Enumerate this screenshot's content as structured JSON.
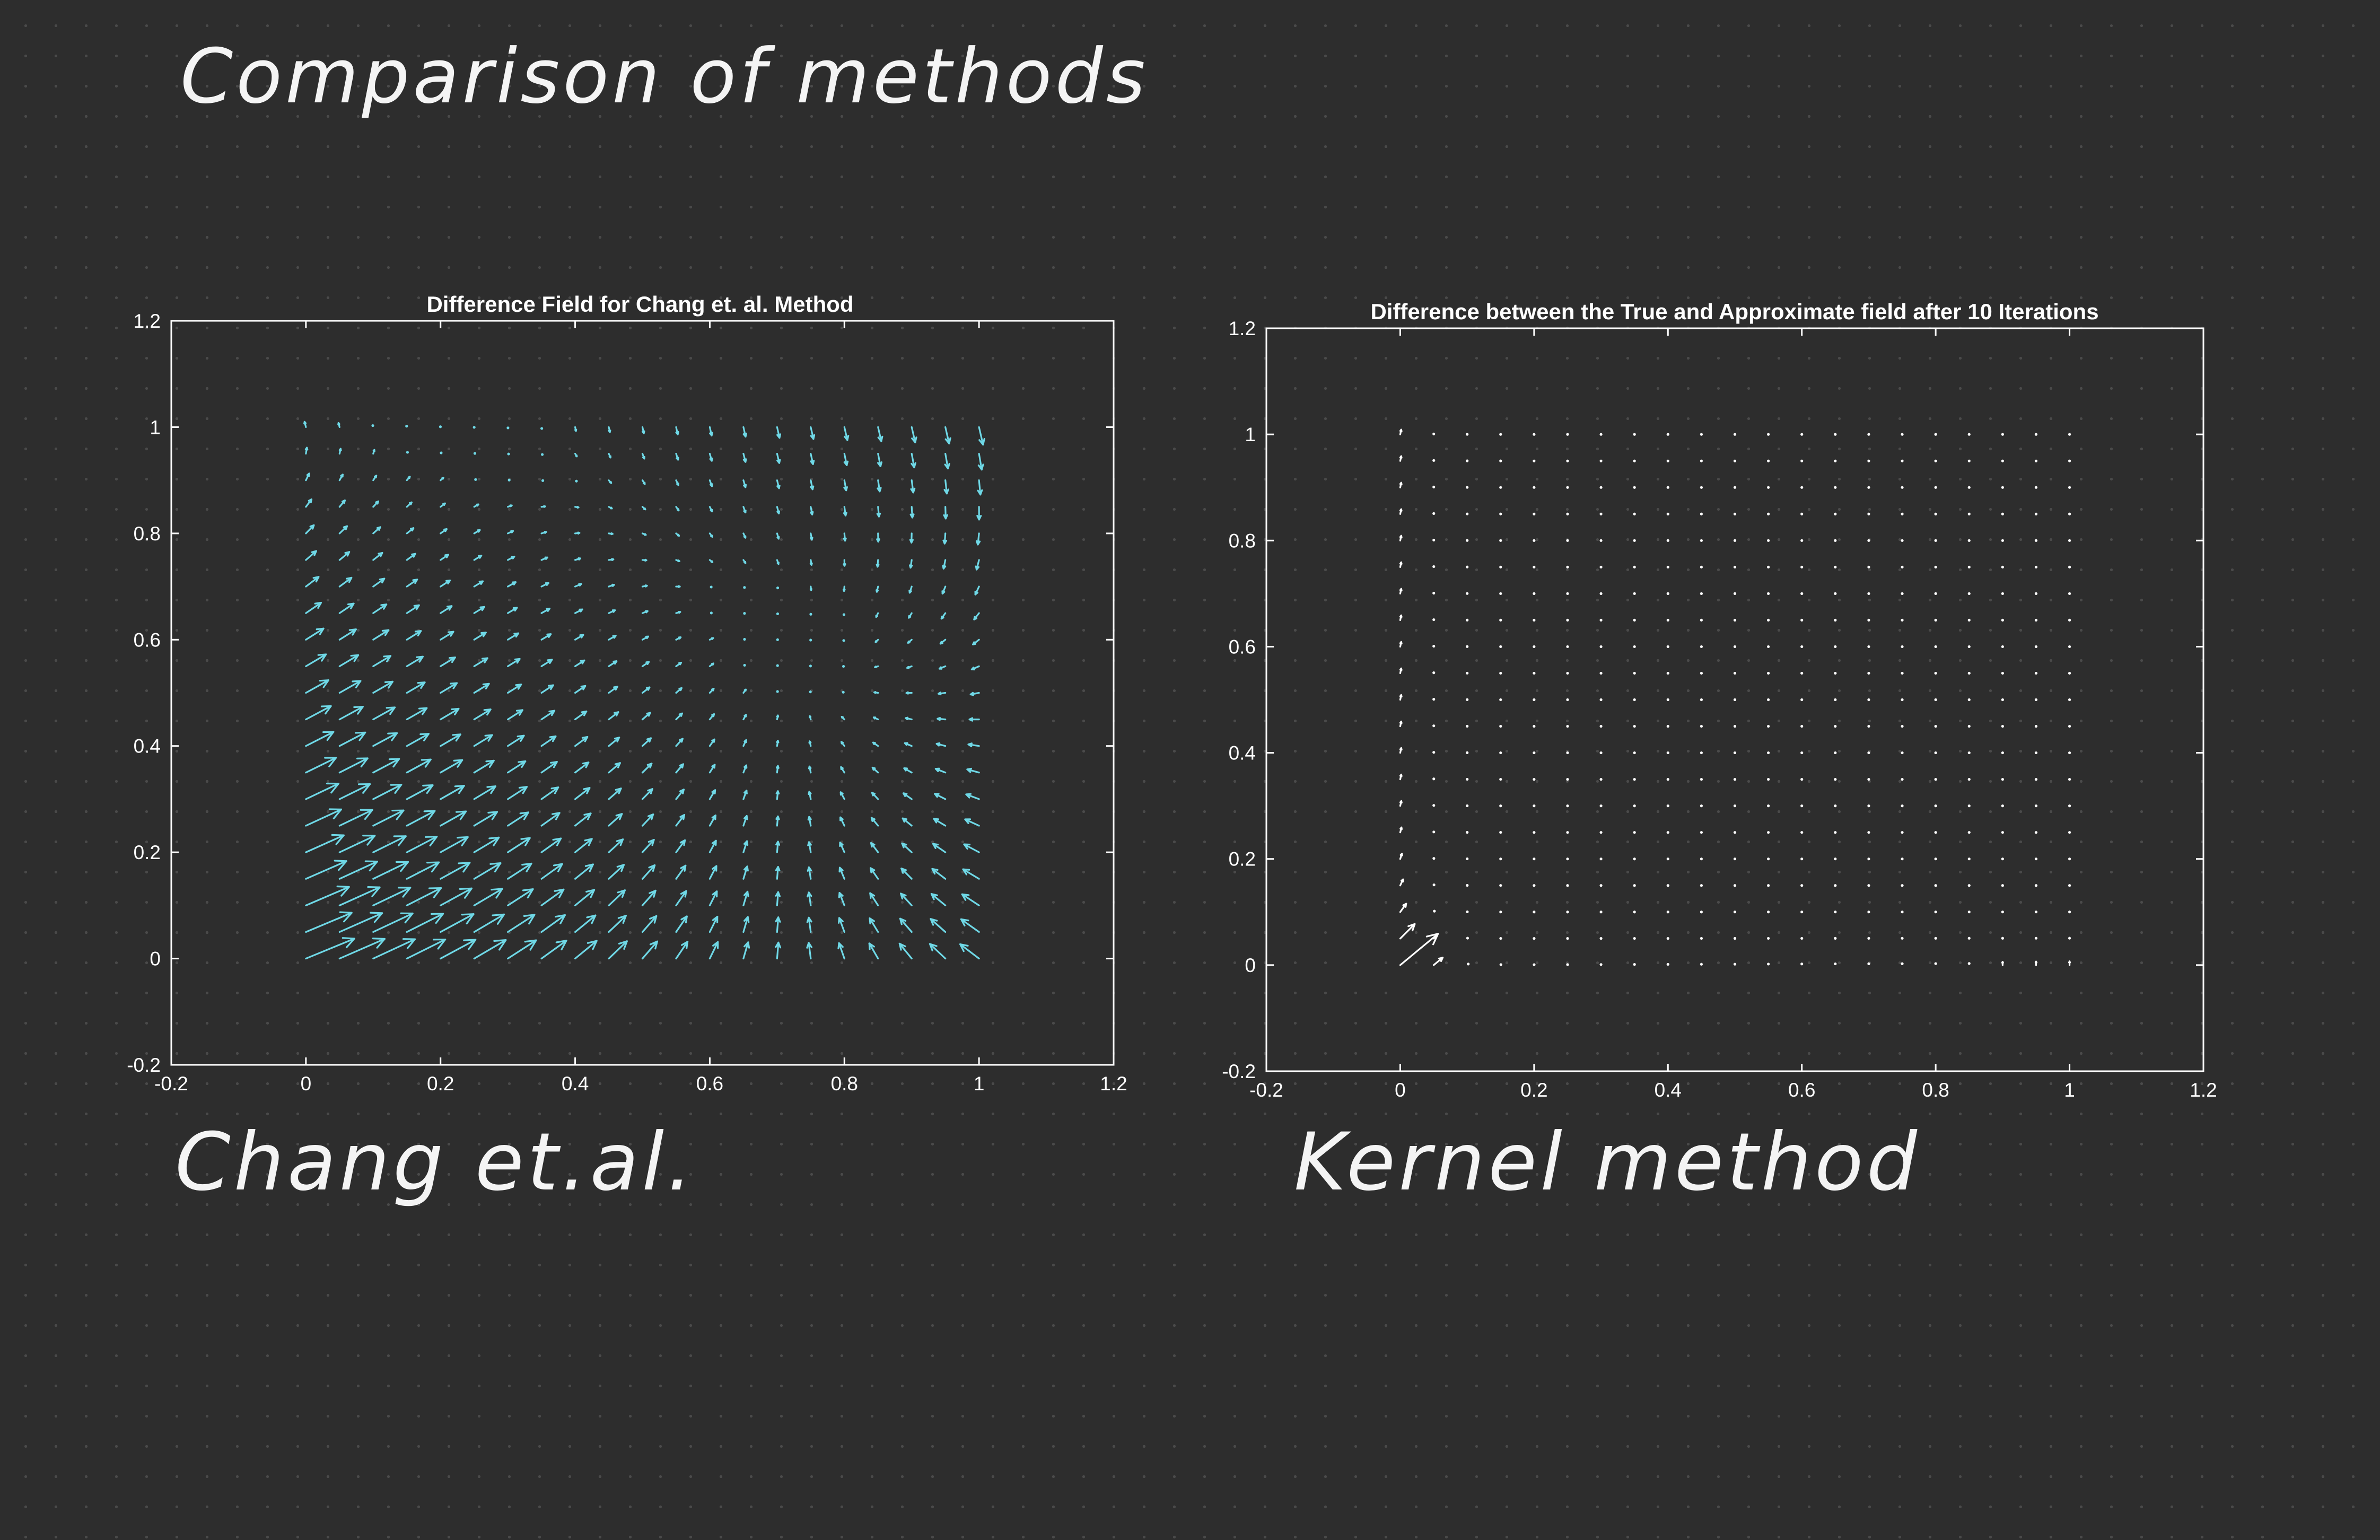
{
  "page": {
    "title": "Comparison of methods",
    "captions": [
      "Chang et.al.",
      "Kernel method"
    ]
  },
  "colors": {
    "background": "#2d2d2d",
    "axes": "#ffffff",
    "arrows_left": "#6fd8e6",
    "arrows_right": "#ffffff"
  },
  "chart_data": [
    {
      "type": "quiver",
      "title": "Difference Field for Chang et. al. Method",
      "xlabel": "",
      "ylabel": "",
      "xlim": [
        -0.2,
        1.2
      ],
      "ylim": [
        -0.2,
        1.2
      ],
      "xticks": [
        "-0.2",
        "0",
        "0.2",
        "0.4",
        "0.6",
        "0.8",
        "1",
        "1.2"
      ],
      "yticks": [
        "-0.2",
        "0",
        "0.2",
        "0.4",
        "0.6",
        "0.8",
        "1",
        "1.2"
      ],
      "grid": false,
      "arrow_color": "#6fd8e6",
      "field": {
        "x": [
          0,
          0.05,
          0.1,
          0.15,
          0.2,
          0.25,
          0.3,
          0.35,
          0.4,
          0.45,
          0.5,
          0.55,
          0.6,
          0.65,
          0.7,
          0.75,
          0.8,
          0.85,
          0.9,
          0.95,
          1
        ],
        "y": [
          0,
          0.05,
          0.1,
          0.15,
          0.2,
          0.25,
          0.3,
          0.35,
          0.4,
          0.45,
          0.5,
          0.55,
          0.6,
          0.65,
          0.7,
          0.75,
          0.8,
          0.85,
          0.9,
          0.95,
          1
        ],
        "u": "(1-x)*(0.9-y)*0.08 - x*(1-y)*0.028 + y*y*0.006",
        "v": "(1-x)*(0.2 + 0.55*(1-y))*0.05 + x*(0.45-y)*0.06"
      }
    },
    {
      "type": "quiver",
      "title": "Difference between the True and Approximate field after 10 Iterations",
      "xlabel": "",
      "ylabel": "",
      "xlim": [
        -0.2,
        1.2
      ],
      "ylim": [
        -0.2,
        1.2
      ],
      "xticks": [
        "-0.2",
        "0",
        "0.2",
        "0.4",
        "0.6",
        "0.8",
        "1",
        "1.2"
      ],
      "yticks": [
        "-0.2",
        "0",
        "0.2",
        "0.4",
        "0.6",
        "0.8",
        "1",
        "1.2"
      ],
      "grid": false,
      "arrow_color": "#ffffff",
      "field": {
        "x": [
          0,
          0.05,
          0.1,
          0.15,
          0.2,
          0.25,
          0.3,
          0.35,
          0.4,
          0.45,
          0.5,
          0.55,
          0.6,
          0.65,
          0.7,
          0.75,
          0.8,
          0.85,
          0.9,
          0.95,
          1
        ],
        "y": [
          0,
          0.05,
          0.1,
          0.15,
          0.2,
          0.25,
          0.3,
          0.35,
          0.4,
          0.45,
          0.5,
          0.55,
          0.6,
          0.65,
          0.7,
          0.75,
          0.8,
          0.85,
          0.9,
          0.95,
          1
        ],
        "u": "0.055*exp(-x/0.035)*exp(-y/0.05) + 0.0015*exp(-x/0.03)",
        "v": "0.05*exp(-x/0.035)*exp(-y/0.05) + 0.009*exp(-x/0.03) + 0.007*exp(-y/0.03)*x"
      }
    }
  ]
}
